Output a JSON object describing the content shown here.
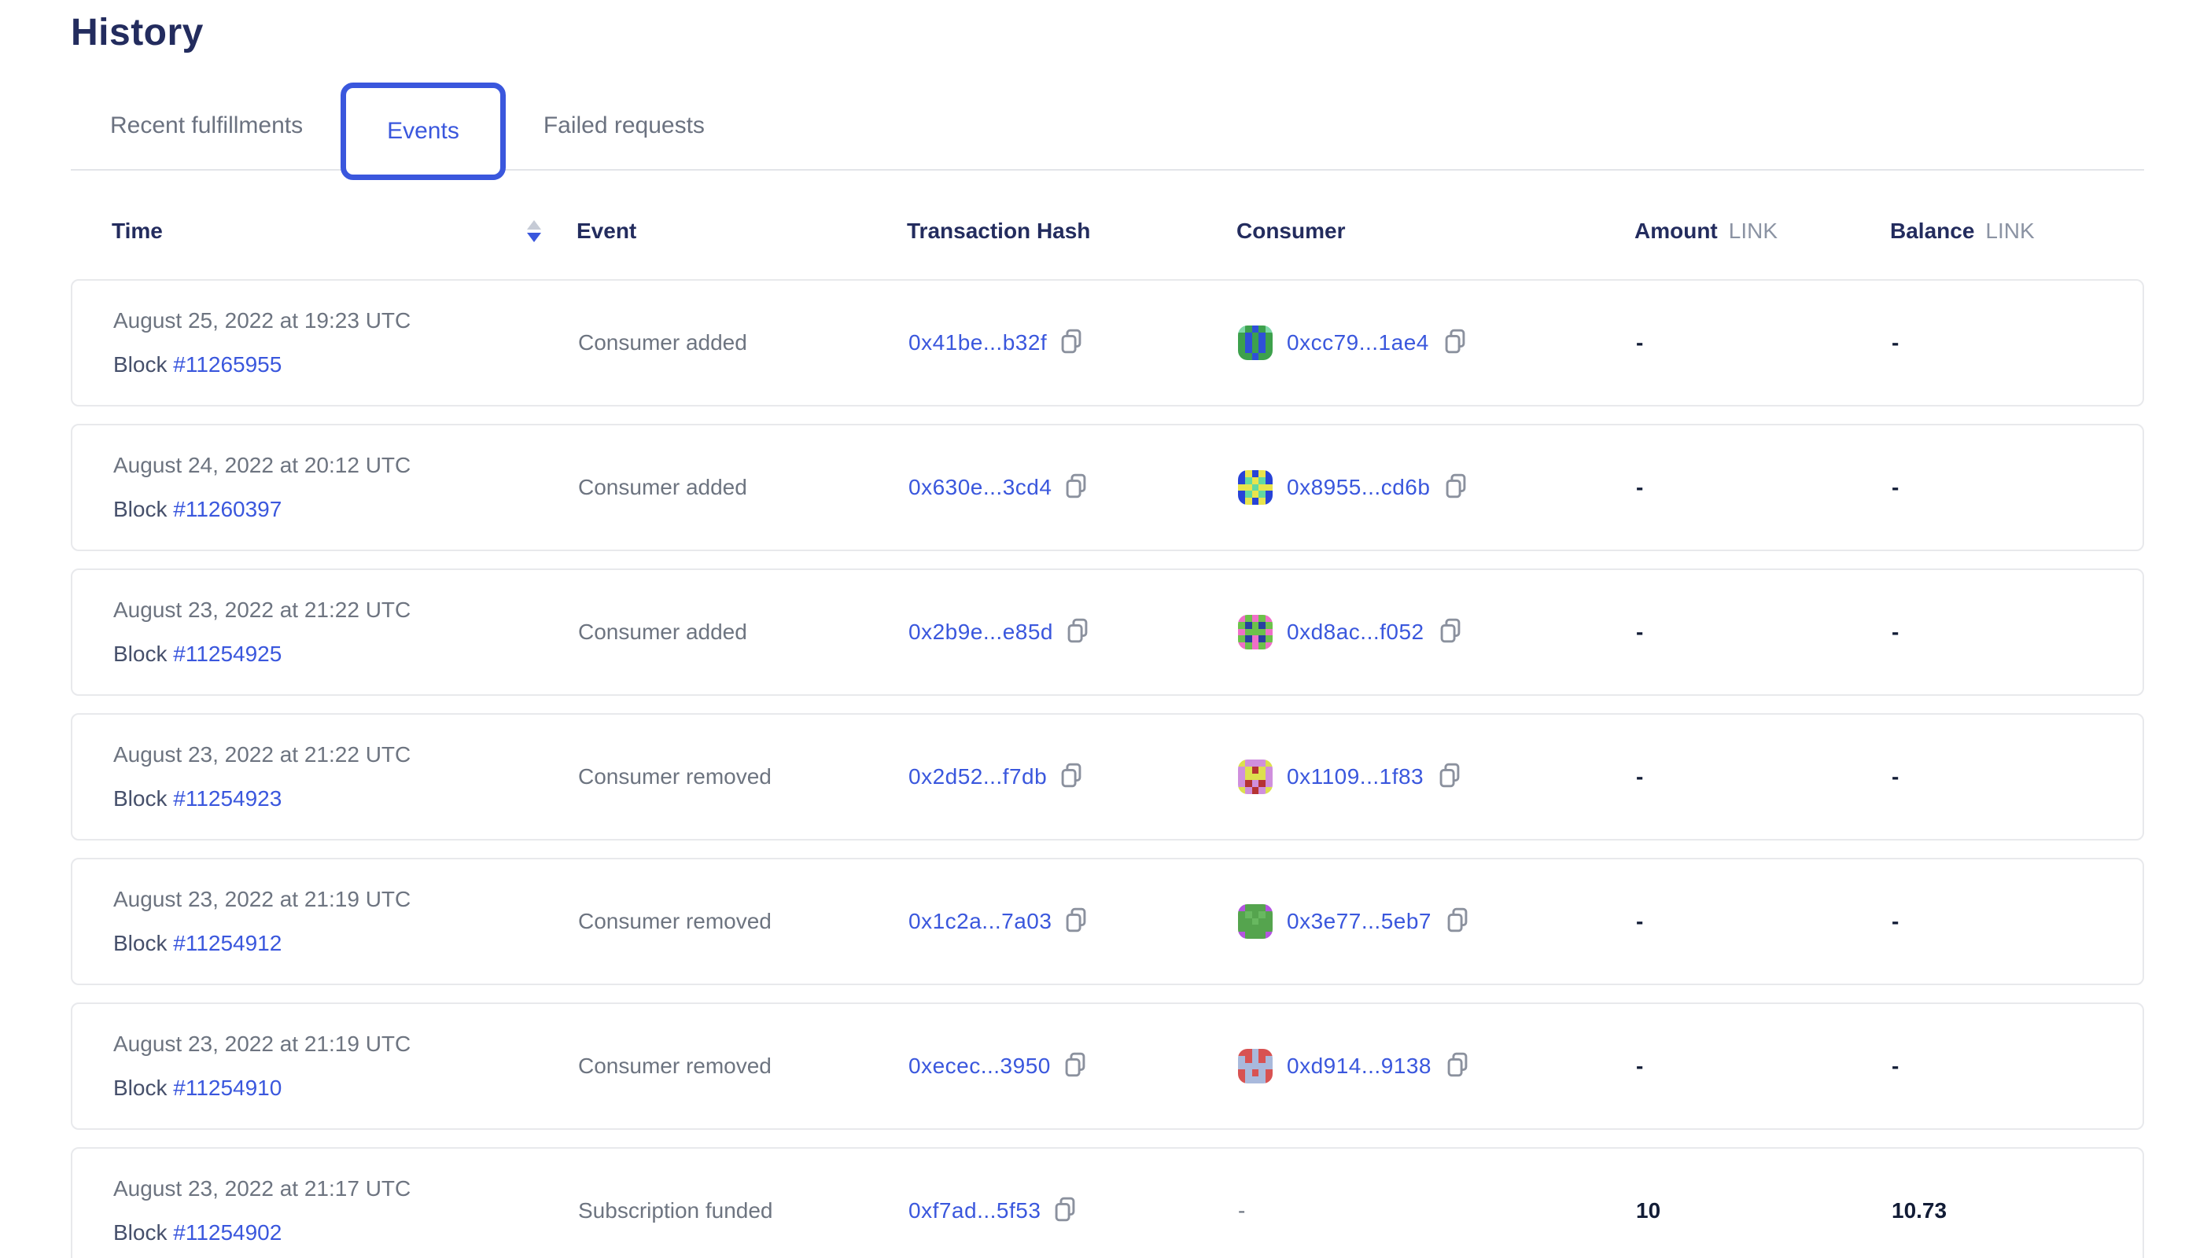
{
  "page": {
    "title": "History"
  },
  "tabs": [
    {
      "label": "Recent fulfillments",
      "active": false
    },
    {
      "label": "Events",
      "active": true
    },
    {
      "label": "Failed requests",
      "active": false
    }
  ],
  "colors": {
    "accent_blue": "#3A57DD",
    "heading_navy": "#232C5E",
    "text_gray": "#6D7480",
    "value_dark": "#121C36",
    "card_border": "#E8E9EC"
  },
  "table": {
    "columns": {
      "time": "Time",
      "event": "Event",
      "tx": "Transaction Hash",
      "consumer": "Consumer",
      "amount": "Amount",
      "balance": "Balance",
      "unit": "LINK"
    },
    "sort": {
      "column": "time",
      "direction": "desc"
    },
    "rows": [
      {
        "time": "August 25, 2022 at 19:23 UTC",
        "block_label": "Block",
        "block": "#11265955",
        "event": "Consumer added",
        "tx": "0x41be...b32f",
        "consumer": "0xcc79...1ae4",
        "amount": "-",
        "balance": "-",
        "identicon": {
          "palette": {
            "g": "#3da14c",
            "b": "#2f50d8",
            "l": "#7fd8a8"
          },
          "grid": [
            "lgbgl",
            "gbgbg",
            "gbgbg",
            "gbgbg",
            "ggbgg"
          ]
        }
      },
      {
        "time": "August 24, 2022 at 20:12 UTC",
        "block_label": "Block",
        "block": "#11260397",
        "event": "Consumer added",
        "tx": "0x630e...3cd4",
        "consumer": "0x8955...cd6b",
        "amount": "-",
        "balance": "-",
        "identicon": {
          "palette": {
            "b": "#2743d8",
            "y": "#e8e44c",
            "g": "#63d9a0"
          },
          "grid": [
            "bybyb",
            "bgygb",
            "yygyy",
            "bgygb",
            "bybyb"
          ]
        }
      },
      {
        "time": "August 23, 2022 at 21:22 UTC",
        "block_label": "Block",
        "block": "#11254925",
        "event": "Consumer added",
        "tx": "0x2b9e...e85d",
        "consumer": "0xd8ac...f052",
        "amount": "-",
        "balance": "-",
        "identicon": {
          "palette": {
            "g": "#6cc24a",
            "p": "#ef6fc8",
            "n": "#2a3fa0"
          },
          "grid": [
            "pgpgp",
            "gngng",
            "pgggp",
            "gnpng",
            "pgpgp"
          ]
        }
      },
      {
        "time": "August 23, 2022 at 21:22 UTC",
        "block_label": "Block",
        "block": "#11254923",
        "event": "Consumer removed",
        "tx": "0x2d52...f7db",
        "consumer": "0x1109...1f83",
        "amount": "-",
        "balance": "-",
        "identicon": {
          "palette": {
            "v": "#cf8fdd",
            "y": "#dde04e",
            "r": "#b53333"
          },
          "grid": [
            "yvvvy",
            "vyryv",
            "vyyyv",
            "vrvrv",
            "yvrvy"
          ]
        }
      },
      {
        "time": "August 23, 2022 at 21:19 UTC",
        "block_label": "Block",
        "block": "#11254912",
        "event": "Consumer removed",
        "tx": "0x1c2a...7a03",
        "consumer": "0x3e77...5eb7",
        "amount": "-",
        "balance": "-",
        "identicon": {
          "palette": {
            "g": "#55a44e",
            "p": "#b455e0",
            "d": "#68b860"
          },
          "grid": [
            "pgggp",
            "gdgdg",
            "ggdgg",
            "ggggg",
            "pgggp"
          ]
        }
      },
      {
        "time": "August 23, 2022 at 21:19 UTC",
        "block_label": "Block",
        "block": "#11254910",
        "event": "Consumer removed",
        "tx": "0xecec...3950",
        "consumer": "0xd914...9138",
        "amount": "-",
        "balance": "-",
        "identicon": {
          "palette": {
            "r": "#d85252",
            "b": "#a9b9dc"
          },
          "grid": [
            "rrbrr",
            "brbrb",
            "bbbbb",
            "rbrbr",
            "rbbbr"
          ]
        }
      },
      {
        "time": "August 23, 2022 at 21:17 UTC",
        "block_label": "Block",
        "block": "#11254902",
        "event": "Subscription funded",
        "tx": "0xf7ad...5f53",
        "consumer": "-",
        "amount": "10",
        "balance": "10.73",
        "identicon": null
      }
    ]
  }
}
